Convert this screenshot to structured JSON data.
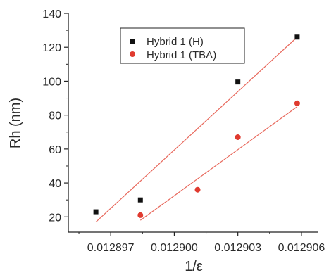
{
  "chart_data": {
    "type": "scatter",
    "xlabel": "1/ε",
    "ylabel": "Rh (nm)",
    "xlim": [
      0.012895,
      0.0129068
    ],
    "ylim": [
      11,
      140
    ],
    "x_ticks": [
      0.012897,
      0.0129,
      0.012903,
      0.012906
    ],
    "x_tick_labels": [
      "0.012897",
      "0.012900",
      "0.012903",
      "0.012906"
    ],
    "y_ticks": [
      20,
      40,
      60,
      80,
      100,
      120,
      140
    ],
    "y_tick_labels": [
      "20",
      "40",
      "60",
      "80",
      "100",
      "120",
      "140"
    ],
    "legend_position": "top-center",
    "grid": false,
    "series": [
      {
        "name": "Hybrid 1 (H)",
        "marker": "square",
        "color": "#111111",
        "line_color": "#e8685c",
        "x": [
          0.0128963,
          0.0128984,
          0.012903,
          0.0129058
        ],
        "y": [
          23,
          30,
          99.5,
          126
        ],
        "fit": {
          "x": [
            0.0128963,
            0.0129058
          ],
          "y": [
            17,
            126
          ]
        }
      },
      {
        "name": "Hybrid 1 (TBA)",
        "marker": "circle",
        "color": "#e03a2f",
        "line_color": "#e8685c",
        "x": [
          0.0128984,
          0.0129011,
          0.012903,
          0.0129058
        ],
        "y": [
          21,
          36,
          67,
          87
        ],
        "fit": {
          "x": [
            0.0128984,
            0.0129058
          ],
          "y": [
            18,
            85
          ]
        }
      }
    ]
  }
}
